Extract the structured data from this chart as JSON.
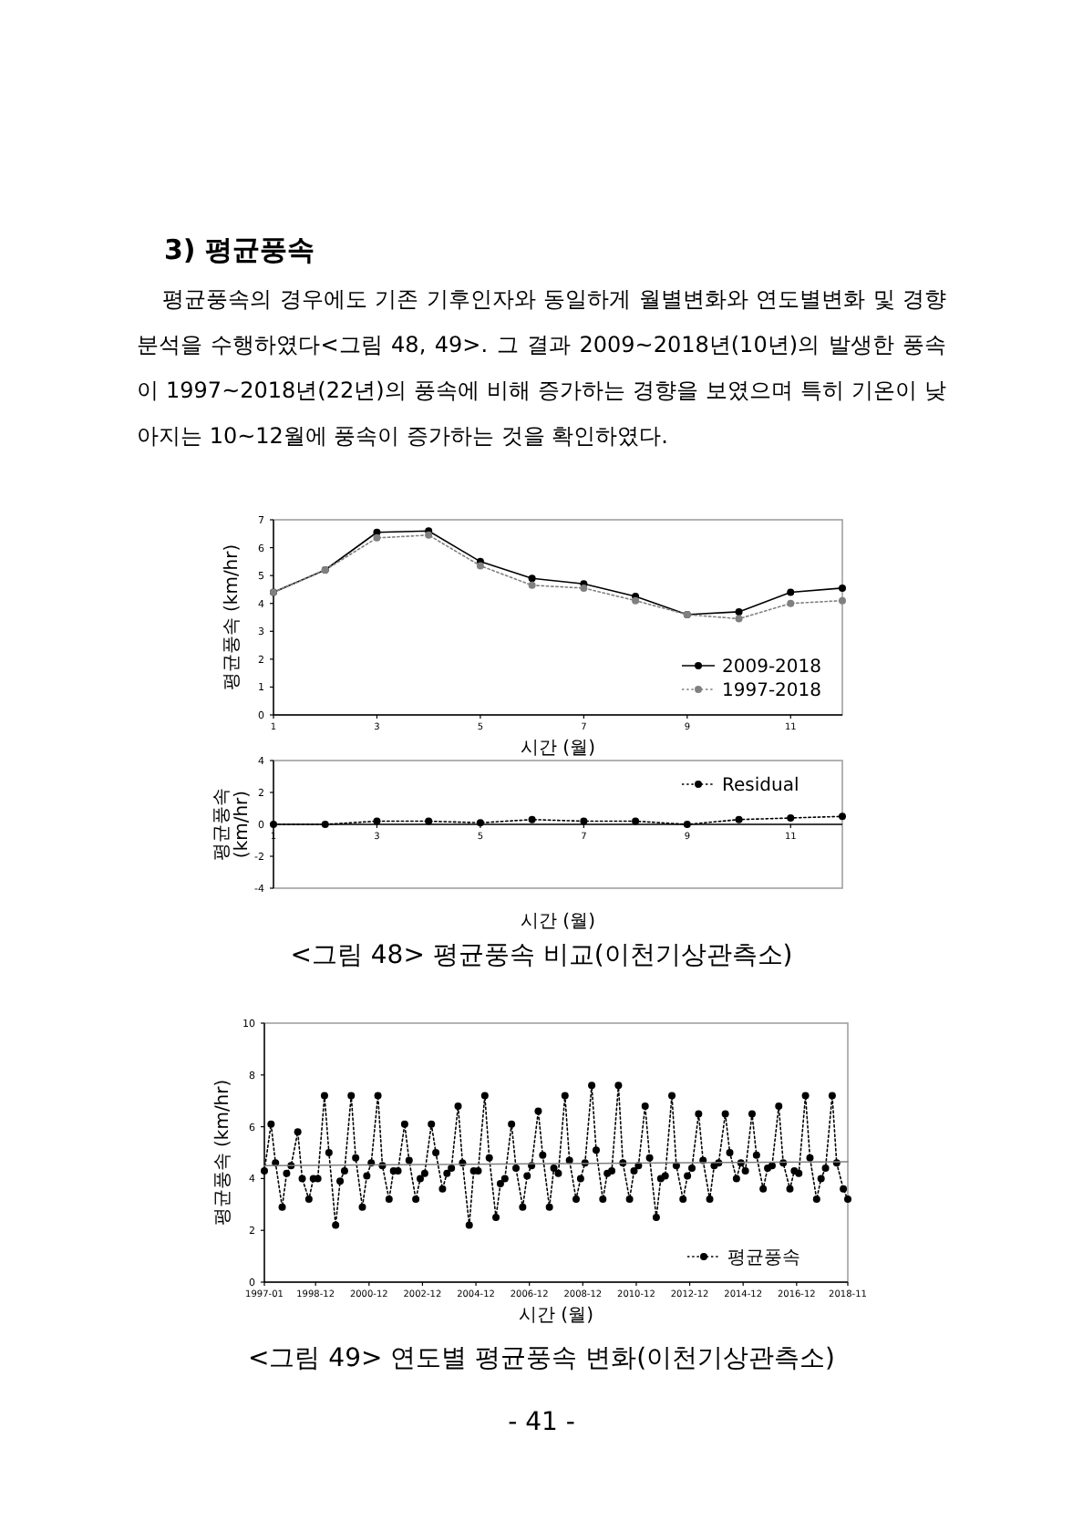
{
  "chart_data": [
    {
      "type": "line",
      "xlabel": "시간 (월)",
      "ylabel": "평균풍속 (km/hr)",
      "annotations": [
        "3) 평균풍속",
        "평균풍속의 경우에도 기존 기후인자와 동일하게 월별변화와 연도별변화 및 경향 분석을 수행하였다<그림 48, 49>. 그 결과 2009~2018년(10년)의 발생한 풍속이 1997~2018년(22년)의 풍속에 비해 증가하는 경향을 보였으며 특히 기온이 낮아지는 10~12월에 풍속이 증가하는 것을 확인하였다."
      ],
      "x": [
        1,
        2,
        3,
        4,
        5,
        6,
        7,
        8,
        9,
        10,
        11,
        12
      ],
      "xlim": [
        1,
        12
      ],
      "xticks": [
        1,
        3,
        5,
        7,
        9,
        11
      ],
      "ylim": [
        0,
        7
      ],
      "yticks": [
        0,
        1,
        2,
        3,
        4,
        5,
        6,
        7
      ],
      "legend": "bottom right",
      "series": [
        {
          "name": "2009-2018",
          "color": "#000000",
          "marker": "circle",
          "line_style": "solid",
          "values": [
            4.4,
            5.2,
            6.55,
            6.6,
            5.5,
            4.9,
            4.7,
            4.25,
            3.6,
            3.7,
            4.4,
            4.55
          ]
        },
        {
          "name": "1997-2018",
          "color": "#808080",
          "marker": "circle",
          "line_style": "dotted",
          "values": [
            4.4,
            5.2,
            6.35,
            6.45,
            5.35,
            4.65,
            4.55,
            4.1,
            3.6,
            3.45,
            4.0,
            4.1
          ]
        }
      ]
    },
    {
      "type": "line",
      "xlabel": "시간 (월)",
      "ylabel": "평균풍속 (km/hr)",
      "annotations": [
        "<그림 48> 평균풍속 비교(이천기상관측소)"
      ],
      "x": [
        1,
        2,
        3,
        4,
        5,
        6,
        7,
        8,
        9,
        10,
        11,
        12
      ],
      "xlim": [
        1,
        12
      ],
      "xticks": [
        1,
        3,
        5,
        7,
        9,
        11
      ],
      "ylim": [
        -4,
        4
      ],
      "yticks": [
        -4,
        -2,
        0,
        2,
        4
      ],
      "legend": "top right",
      "series": [
        {
          "name": "Residual",
          "color": "#000000",
          "marker": "circle",
          "line_style": "dotted",
          "values": [
            0,
            0,
            0.2,
            0.2,
            0.1,
            0.3,
            0.2,
            0.2,
            0,
            0.3,
            0.4,
            0.5
          ]
        }
      ]
    },
    {
      "type": "line",
      "xlabel": "시간 (월)",
      "ylabel": "평균풍속 (km/hr)",
      "annotations": [
        "<그림 49> 연도별 평균풍속 변화(이천기상관측소)",
        "- 41 -"
      ],
      "xlim": [
        "1997-01",
        "2018-11"
      ],
      "xticks": [
        "1997-01",
        "1998-12",
        "2000-12",
        "2002-12",
        "2004-12",
        "2006-12",
        "2008-12",
        "2010-12",
        "2012-12",
        "2014-12",
        "2016-12",
        "2018-11"
      ],
      "ylim": [
        0,
        10
      ],
      "yticks": [
        0,
        2,
        4,
        6,
        8,
        10
      ],
      "legend": "bottom right",
      "series": [
        {
          "name": "평균풍속",
          "color": "#000000",
          "marker": "circle",
          "line_style": "dotted",
          "x": [
            "1997-01",
            "1997-04",
            "1997-06",
            "1997-09",
            "1997-11",
            "1998-01",
            "1998-04",
            "1998-06",
            "1998-09",
            "1998-11",
            "1999-01",
            "1999-04",
            "1999-06",
            "1999-09",
            "1999-11",
            "2000-01",
            "2000-04",
            "2000-06",
            "2000-09",
            "2000-11",
            "2001-01",
            "2001-04",
            "2001-06",
            "2001-09",
            "2001-11",
            "2002-01",
            "2002-04",
            "2002-06",
            "2002-09",
            "2002-11",
            "2003-01",
            "2003-04",
            "2003-06",
            "2003-09",
            "2003-11",
            "2004-01",
            "2004-04",
            "2004-06",
            "2004-09",
            "2004-11",
            "2005-01",
            "2005-04",
            "2005-06",
            "2005-09",
            "2005-11",
            "2006-01",
            "2006-04",
            "2006-06",
            "2006-09",
            "2006-11",
            "2007-01",
            "2007-04",
            "2007-06",
            "2007-09",
            "2007-11",
            "2008-01",
            "2008-04",
            "2008-06",
            "2008-09",
            "2008-11",
            "2009-01",
            "2009-04",
            "2009-06",
            "2009-09",
            "2009-11",
            "2010-01",
            "2010-04",
            "2010-06",
            "2010-09",
            "2010-11",
            "2011-01",
            "2011-04",
            "2011-06",
            "2011-09",
            "2011-11",
            "2012-01",
            "2012-04",
            "2012-06",
            "2012-09",
            "2012-11",
            "2013-01",
            "2013-04",
            "2013-06",
            "2013-09",
            "2013-11",
            "2014-01",
            "2014-04",
            "2014-06",
            "2014-09",
            "2014-11",
            "2015-01",
            "2015-04",
            "2015-06",
            "2015-09",
            "2015-11",
            "2016-01",
            "2016-04",
            "2016-06",
            "2016-09",
            "2016-11",
            "2017-01",
            "2017-04",
            "2017-06",
            "2017-09",
            "2017-11",
            "2018-01",
            "2018-04",
            "2018-06",
            "2018-09",
            "2018-11"
          ],
          "values": [
            4.3,
            6.1,
            4.6,
            2.9,
            4.2,
            4.5,
            5.8,
            4.0,
            3.2,
            4.0,
            4.0,
            7.2,
            5.0,
            2.2,
            3.9,
            4.3,
            7.2,
            4.8,
            2.9,
            4.1,
            4.6,
            7.2,
            4.5,
            3.2,
            4.3,
            4.3,
            6.1,
            4.7,
            3.2,
            4.0,
            4.2,
            6.1,
            5.0,
            3.6,
            4.2,
            4.4,
            6.8,
            4.6,
            2.2,
            4.3,
            4.3,
            7.2,
            4.8,
            2.5,
            3.8,
            4.0,
            6.1,
            4.4,
            2.9,
            4.1,
            4.5,
            6.6,
            4.9,
            2.9,
            4.4,
            4.2,
            7.2,
            4.7,
            3.2,
            4.0,
            4.6,
            7.6,
            5.1,
            3.2,
            4.2,
            4.3,
            7.6,
            4.6,
            3.2,
            4.3,
            4.5,
            6.8,
            4.8,
            2.5,
            4.0,
            4.1,
            7.2,
            4.5,
            3.2,
            4.1,
            4.4,
            6.5,
            4.7,
            3.2,
            4.5,
            4.6,
            6.5,
            5.0,
            4.0,
            4.6,
            4.3,
            6.5,
            4.9,
            3.6,
            4.4,
            4.5,
            6.8,
            4.6,
            3.6,
            4.3,
            4.2,
            7.2,
            4.8,
            3.2,
            4.0,
            4.4,
            7.2,
            4.6,
            3.6,
            3.2
          ]
        },
        {
          "type": "line",
          "color": "#808080",
          "marker": "none",
          "line_style": "solid",
          "x": [
            "1997-01",
            "2018-11"
          ],
          "values": [
            4.5,
            4.65
          ]
        }
      ]
    }
  ]
}
